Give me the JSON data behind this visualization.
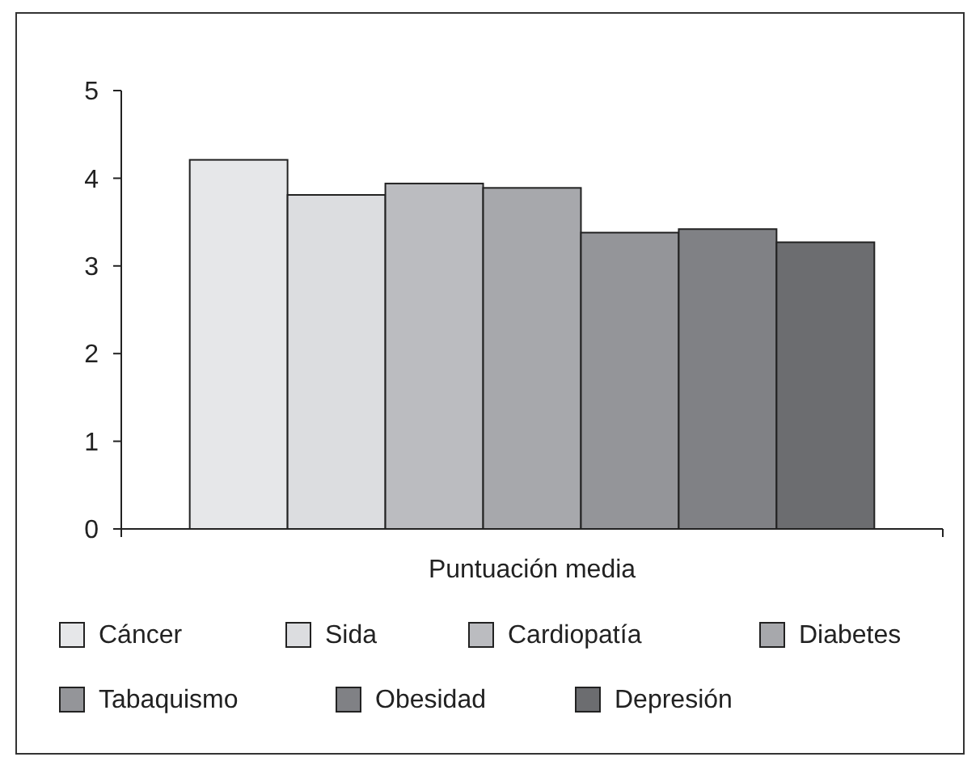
{
  "chart_data": {
    "type": "bar",
    "categories": [
      "Puntuación media"
    ],
    "series": [
      {
        "name": "Cáncer",
        "color": "#e6e7e9",
        "values": [
          4.21
        ]
      },
      {
        "name": "Sida",
        "color": "#dcdde0",
        "values": [
          3.81
        ]
      },
      {
        "name": "Cardiopatía",
        "color": "#bbbcc0",
        "values": [
          3.94
        ]
      },
      {
        "name": "Diabetes",
        "color": "#a7a8ac",
        "values": [
          3.89
        ]
      },
      {
        "name": "Tabaquismo",
        "color": "#949599",
        "values": [
          3.38
        ]
      },
      {
        "name": "Obesidad",
        "color": "#808185",
        "values": [
          3.42
        ]
      },
      {
        "name": "Depresión",
        "color": "#6c6d70",
        "values": [
          3.27
        ]
      }
    ],
    "ylim": [
      0,
      5
    ],
    "yticks": [
      0,
      1,
      2,
      3,
      4,
      5
    ],
    "grid": false,
    "legend": "bottom"
  }
}
